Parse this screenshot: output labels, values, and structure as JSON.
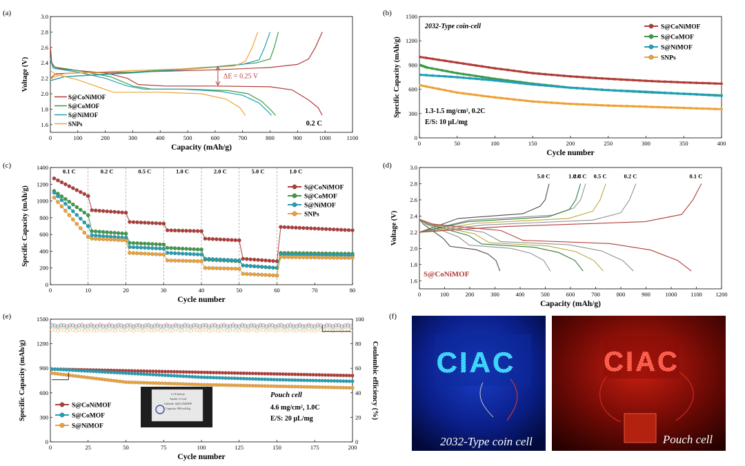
{
  "panels": {
    "a": {
      "tag": "(a)"
    },
    "b": {
      "tag": "(b)"
    },
    "c": {
      "tag": "(c)"
    },
    "d": {
      "tag": "(d)"
    },
    "e": {
      "tag": "(e)"
    },
    "f": {
      "tag": "(f)"
    }
  },
  "colors": {
    "CoNi": "#b23b35",
    "Co": "#3d9a47",
    "Ni": "#1f9fb6",
    "SNP": "#eea236",
    "d_dark": "#4a4a4a",
    "d_light": "#909090",
    "d_green": "#2f7a3b",
    "d_olive": "#b9a83a"
  },
  "chart_data": [
    {
      "panel": "a",
      "type": "line",
      "xlabel": "Capacity (mAh/g)",
      "ylabel": "Voltage (V)",
      "xlim": [
        0,
        1100
      ],
      "ylim": [
        1.5,
        3.0
      ],
      "xticks": [
        0,
        100,
        200,
        300,
        400,
        500,
        600,
        700,
        800,
        900,
        1000,
        1100
      ],
      "yticks": [
        1.6,
        1.8,
        2.0,
        2.2,
        2.4,
        2.6,
        2.8,
        3.0
      ],
      "annotation": "ΔE = 0.25 V",
      "condition": "0.2 C",
      "series": [
        {
          "name": "S@CoNiMOF",
          "key": "CoNi",
          "discharge": [
            [
              0,
              2.62
            ],
            [
              5,
              2.4
            ],
            [
              20,
              2.33
            ],
            [
              100,
              2.3
            ],
            [
              200,
              2.27
            ],
            [
              280,
              2.2
            ],
            [
              320,
              2.12
            ],
            [
              420,
              2.1
            ],
            [
              600,
              2.1
            ],
            [
              800,
              2.09
            ],
            [
              880,
              2.05
            ],
            [
              940,
              1.92
            ],
            [
              975,
              1.82
            ],
            [
              990,
              1.72
            ]
          ],
          "charge": [
            [
              0,
              2.2
            ],
            [
              20,
              2.26
            ],
            [
              100,
              2.27
            ],
            [
              300,
              2.28
            ],
            [
              600,
              2.31
            ],
            [
              800,
              2.34
            ],
            [
              900,
              2.38
            ],
            [
              940,
              2.45
            ],
            [
              965,
              2.6
            ],
            [
              990,
              2.8
            ]
          ]
        },
        {
          "name": "S@CoMOF",
          "key": "Co",
          "discharge": [
            [
              0,
              2.45
            ],
            [
              10,
              2.35
            ],
            [
              100,
              2.3
            ],
            [
              220,
              2.22
            ],
            [
              300,
              2.1
            ],
            [
              370,
              2.06
            ],
            [
              500,
              2.06
            ],
            [
              650,
              2.04
            ],
            [
              720,
              2.0
            ],
            [
              770,
              1.9
            ],
            [
              805,
              1.78
            ],
            [
              820,
              1.72
            ]
          ],
          "charge": [
            [
              0,
              2.17
            ],
            [
              50,
              2.22
            ],
            [
              300,
              2.28
            ],
            [
              600,
              2.35
            ],
            [
              750,
              2.4
            ],
            [
              800,
              2.45
            ],
            [
              815,
              2.6
            ],
            [
              830,
              2.8
            ]
          ]
        },
        {
          "name": "S@NiMOF",
          "key": "Ni",
          "discharge": [
            [
              0,
              2.45
            ],
            [
              10,
              2.33
            ],
            [
              100,
              2.28
            ],
            [
              200,
              2.2
            ],
            [
              280,
              2.1
            ],
            [
              340,
              2.06
            ],
            [
              480,
              2.06
            ],
            [
              620,
              2.03
            ],
            [
              700,
              1.98
            ],
            [
              760,
              1.88
            ],
            [
              795,
              1.76
            ],
            [
              805,
              1.72
            ]
          ],
          "charge": [
            [
              0,
              2.17
            ],
            [
              50,
              2.22
            ],
            [
              300,
              2.27
            ],
            [
              550,
              2.33
            ],
            [
              700,
              2.38
            ],
            [
              760,
              2.44
            ],
            [
              780,
              2.6
            ],
            [
              800,
              2.8
            ]
          ]
        },
        {
          "name": "SNPs",
          "key": "SNP",
          "discharge": [
            [
              0,
              2.3
            ],
            [
              20,
              2.25
            ],
            [
              100,
              2.18
            ],
            [
              180,
              2.08
            ],
            [
              230,
              2.02
            ],
            [
              400,
              2.02
            ],
            [
              550,
              2.0
            ],
            [
              640,
              1.93
            ],
            [
              690,
              1.82
            ],
            [
              710,
              1.72
            ]
          ],
          "charge": [
            [
              0,
              2.2
            ],
            [
              50,
              2.26
            ],
            [
              300,
              2.3
            ],
            [
              550,
              2.33
            ],
            [
              670,
              2.36
            ],
            [
              710,
              2.42
            ],
            [
              735,
              2.6
            ],
            [
              755,
              2.8
            ]
          ]
        }
      ]
    },
    {
      "panel": "b",
      "type": "line",
      "xlabel": "Cycle number",
      "ylabel": "Specific Capacity (mAh/g)",
      "xlim": [
        0,
        400
      ],
      "ylim": [
        0,
        1500
      ],
      "xticks": [
        0,
        50,
        100,
        150,
        200,
        250,
        300,
        350,
        400
      ],
      "yticks": [
        0,
        300,
        600,
        900,
        1200,
        1500
      ],
      "title": "2032-Type coin-cell",
      "note": [
        "1.3-1.5 mg/cm², 0.2C",
        "E/S: 10 μL/mg"
      ],
      "series": [
        {
          "name": "S@CoNiMOF",
          "key": "CoNi",
          "x": [
            1,
            50,
            100,
            150,
            200,
            250,
            300,
            350,
            400
          ],
          "values": [
            1000,
            930,
            860,
            800,
            760,
            730,
            705,
            685,
            670
          ]
        },
        {
          "name": "S@CoMOF",
          "key": "Co",
          "x": [
            1,
            10,
            50,
            100,
            150,
            200,
            250,
            300,
            350,
            400
          ],
          "values": [
            900,
            870,
            800,
            730,
            670,
            620,
            590,
            565,
            545,
            525
          ]
        },
        {
          "name": "S@NiMOF",
          "key": "Ni",
          "x": [
            1,
            50,
            100,
            150,
            200,
            250,
            300,
            350,
            400
          ],
          "values": [
            780,
            750,
            710,
            660,
            620,
            590,
            570,
            545,
            520
          ]
        },
        {
          "name": "SNPs",
          "key": "SNP",
          "x": [
            1,
            50,
            100,
            150,
            200,
            250,
            300,
            350,
            400
          ],
          "values": [
            650,
            560,
            500,
            450,
            420,
            400,
            385,
            370,
            355
          ]
        }
      ]
    },
    {
      "panel": "c",
      "type": "scatter",
      "xlabel": "Cycle number",
      "ylabel": "Specific Capacity (mAh/g)",
      "xlim": [
        0,
        80
      ],
      "ylim": [
        0,
        1400
      ],
      "xticks": [
        0,
        10,
        20,
        30,
        40,
        50,
        60,
        70,
        80
      ],
      "yticks": [
        0,
        200,
        400,
        600,
        800,
        1000,
        1200,
        1400
      ],
      "rate_labels": [
        "0.1 C",
        "0.2 C",
        "0.5 C",
        "1.0 C",
        "2.0 C",
        "5.0 C",
        "1.0 C"
      ],
      "series": [
        {
          "name": "S@CoNiMOF",
          "key": "CoNi",
          "steps": [
            [
              1270,
              1060
            ],
            [
              890,
              860
            ],
            [
              750,
              730
            ],
            [
              650,
              640
            ],
            [
              550,
              530
            ],
            [
              310,
              280
            ],
            [
              690,
              650
            ]
          ]
        },
        {
          "name": "S@CoMOF",
          "key": "Co",
          "steps": [
            [
              1120,
              830
            ],
            [
              640,
              610
            ],
            [
              500,
              480
            ],
            [
              440,
              420
            ],
            [
              300,
              280
            ],
            [
              230,
              200
            ],
            [
              380,
              370
            ]
          ]
        },
        {
          "name": "S@NiMOF",
          "key": "Ni",
          "steps": [
            [
              1100,
              700
            ],
            [
              590,
              560
            ],
            [
              450,
              430
            ],
            [
              380,
              360
            ],
            [
              310,
              290
            ],
            [
              230,
              200
            ],
            [
              360,
              350
            ]
          ]
        },
        {
          "name": "SNPs",
          "key": "SNP",
          "steps": [
            [
              1040,
              570
            ],
            [
              550,
              530
            ],
            [
              380,
              360
            ],
            [
              290,
              280
            ],
            [
              200,
              190
            ],
            [
              130,
              110
            ],
            [
              330,
              320
            ]
          ]
        }
      ]
    },
    {
      "panel": "d",
      "type": "line",
      "xlabel": "Capacity (mAh/g)",
      "ylabel": "Voltage (V)",
      "xlim": [
        0,
        1200
      ],
      "ylim": [
        1.5,
        3.0
      ],
      "xticks": [
        0,
        100,
        200,
        300,
        400,
        500,
        600,
        700,
        800,
        900,
        1000,
        1100,
        1200
      ],
      "yticks": [
        1.6,
        1.8,
        2.0,
        2.2,
        2.4,
        2.6,
        2.8,
        3.0
      ],
      "legend_label": "S@CoNiMOF",
      "series": [
        {
          "name": "5.0 C",
          "key": "d_dark",
          "end_cap": 320,
          "charge_end": 515
        },
        {
          "name": "2.0 C",
          "key": "d_light",
          "end_cap": 520,
          "charge_end": 660
        },
        {
          "name": "1.0 C",
          "key": "d_green",
          "end_cap": 650,
          "charge_end": 640
        },
        {
          "name": "0.5 C",
          "key": "d_olive",
          "end_cap": 730,
          "charge_end": 740
        },
        {
          "name": "0.2 C",
          "key": "d_light",
          "end_cap": 850,
          "charge_end": 860
        },
        {
          "name": "0.1 C",
          "key": "CoNi",
          "end_cap": 1080,
          "charge_end": 1120
        }
      ]
    },
    {
      "panel": "e",
      "type": "scatter",
      "xlabel": "Cycle number",
      "ylabel": "Specific Capacity (mAh/g)",
      "ylabel_right": "Coulombic efficiency (%)",
      "xlim": [
        0,
        200
      ],
      "ylim": [
        0,
        1500
      ],
      "ylim_right": [
        0,
        100
      ],
      "xticks": [
        0,
        25,
        50,
        75,
        100,
        125,
        150,
        175,
        200
      ],
      "yticks": [
        0,
        300,
        600,
        900,
        1200,
        1500
      ],
      "yticks_right": [
        0,
        20,
        40,
        60,
        80,
        100
      ],
      "title": "Pouch cell",
      "note": [
        "4.6 mg/cm², 1.0C",
        "E/S: 20 μL/mg"
      ],
      "series": [
        {
          "name": "S@CoNiMOF",
          "key": "CoNi",
          "x": [
            1,
            50,
            100,
            150,
            200
          ],
          "values": [
            890,
            870,
            850,
            830,
            810
          ],
          "ce": 95
        },
        {
          "name": "S@CoMOF",
          "key": "Ni",
          "x": [
            1,
            50,
            100,
            150,
            200
          ],
          "values": [
            890,
            840,
            790,
            760,
            740
          ],
          "ce": 94
        },
        {
          "name": "S@NiMOF",
          "key": "SNP",
          "x": [
            1,
            50,
            100,
            150,
            200
          ],
          "values": [
            840,
            730,
            700,
            680,
            660
          ],
          "ce": 91
        }
      ],
      "inset": {
        "line1": "Li-S battery",
        "line2": "Anode: Li foil",
        "line3": "Cathode: S@CoNiMOF",
        "line4": "Capacity: 900 mAh/g"
      }
    }
  ],
  "photos": {
    "left": {
      "caption": "2032-Type coin cell",
      "sign": "CIAC"
    },
    "right": {
      "caption": "Pouch cell",
      "sign": "CIAC"
    }
  }
}
